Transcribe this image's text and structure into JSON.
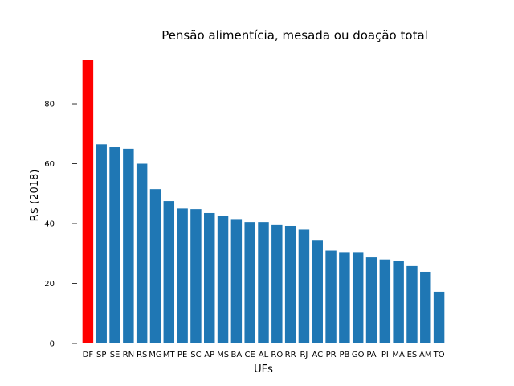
{
  "chart_data": {
    "type": "bar",
    "title": "Pensão alimentícia, mesada ou doação total",
    "xlabel": "UFs",
    "ylabel": "R$ (2018)",
    "categories": [
      "DF",
      "SP",
      "SE",
      "RN",
      "RS",
      "MG",
      "MT",
      "PE",
      "SC",
      "AP",
      "MS",
      "BA",
      "CE",
      "AL",
      "RO",
      "RR",
      "RJ",
      "AC",
      "PR",
      "PB",
      "GO",
      "PA",
      "PI",
      "MA",
      "ES",
      "AM",
      "TO"
    ],
    "values": [
      94.5,
      66.5,
      65.5,
      65.0,
      60.0,
      51.5,
      47.5,
      45.0,
      44.8,
      43.5,
      42.5,
      41.5,
      40.5,
      40.5,
      39.5,
      39.2,
      38.0,
      34.3,
      31.0,
      30.5,
      30.5,
      28.7,
      28.0,
      27.4,
      25.8,
      23.9,
      17.2
    ],
    "highlight_index": 0,
    "colors": {
      "bar": "#1f77b4",
      "highlight": "#ff0000"
    },
    "yticks": [
      0,
      20,
      40,
      60,
      80
    ],
    "ylim": [
      0,
      94.5
    ],
    "grid": false,
    "legend": "none"
  }
}
